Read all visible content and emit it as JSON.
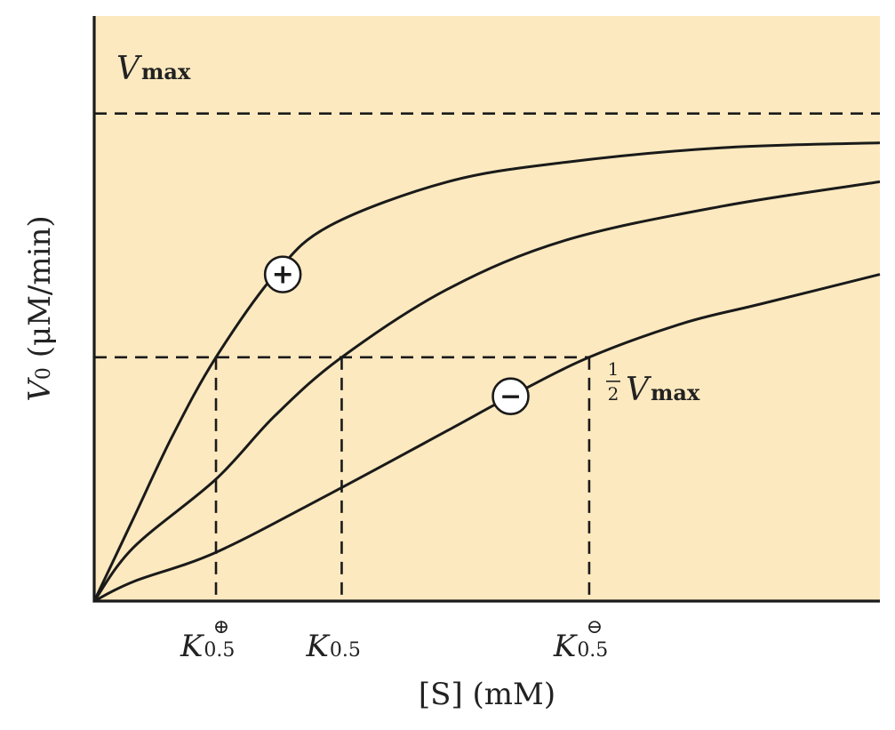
{
  "chart_data": {
    "type": "line",
    "xlabel": "[S] (mM)",
    "ylabel": "V0 (μM/min)",
    "ylabel_main": "V",
    "ylabel_sub": "0",
    "ylabel_units": "(μM/min)",
    "xlim": [
      0,
      10
    ],
    "ylim": [
      0,
      1.2
    ],
    "grid": false,
    "background": "#fce9bf",
    "line_color": "#1a1a1a",
    "vmax": {
      "value": 1.0,
      "label_main": "V",
      "label_sub": "max"
    },
    "half_vmax": {
      "value": 0.5,
      "num": "1",
      "den": "2",
      "label_main": "V",
      "label_sub": "max"
    },
    "k_markers": [
      {
        "x": 1.55,
        "main": "K",
        "sub": "0.5",
        "sup": "⊕"
      },
      {
        "x": 3.15,
        "main": "K",
        "sub": "0.5",
        "sup": ""
      },
      {
        "x": 6.3,
        "main": "K",
        "sub": "0.5",
        "sup": "⊖"
      }
    ],
    "series": [
      {
        "modulator": "+",
        "x": [
          0,
          0.5,
          1.0,
          1.55,
          2.3,
          3.0,
          4.5,
          6.0,
          8.0,
          10.0
        ],
        "y": [
          0,
          0.17,
          0.34,
          0.5,
          0.67,
          0.77,
          0.86,
          0.9,
          0.93,
          0.94
        ]
      },
      {
        "modulator": "",
        "x": [
          0,
          0.5,
          1.55,
          2.3,
          3.15,
          4.5,
          6.0,
          8.0,
          10.0
        ],
        "y": [
          0,
          0.11,
          0.25,
          0.38,
          0.5,
          0.64,
          0.74,
          0.81,
          0.86
        ]
      },
      {
        "modulator": "−",
        "x": [
          0,
          0.5,
          1.55,
          3.0,
          4.5,
          5.3,
          6.3,
          7.5,
          8.5,
          10.0
        ],
        "y": [
          0,
          0.04,
          0.1,
          0.22,
          0.35,
          0.42,
          0.5,
          0.57,
          0.61,
          0.67
        ]
      }
    ],
    "modulator_badges": [
      {
        "symbol": "+",
        "x": 2.4,
        "y": 0.67
      },
      {
        "symbol": "−",
        "x": 5.3,
        "y": 0.42
      }
    ]
  }
}
